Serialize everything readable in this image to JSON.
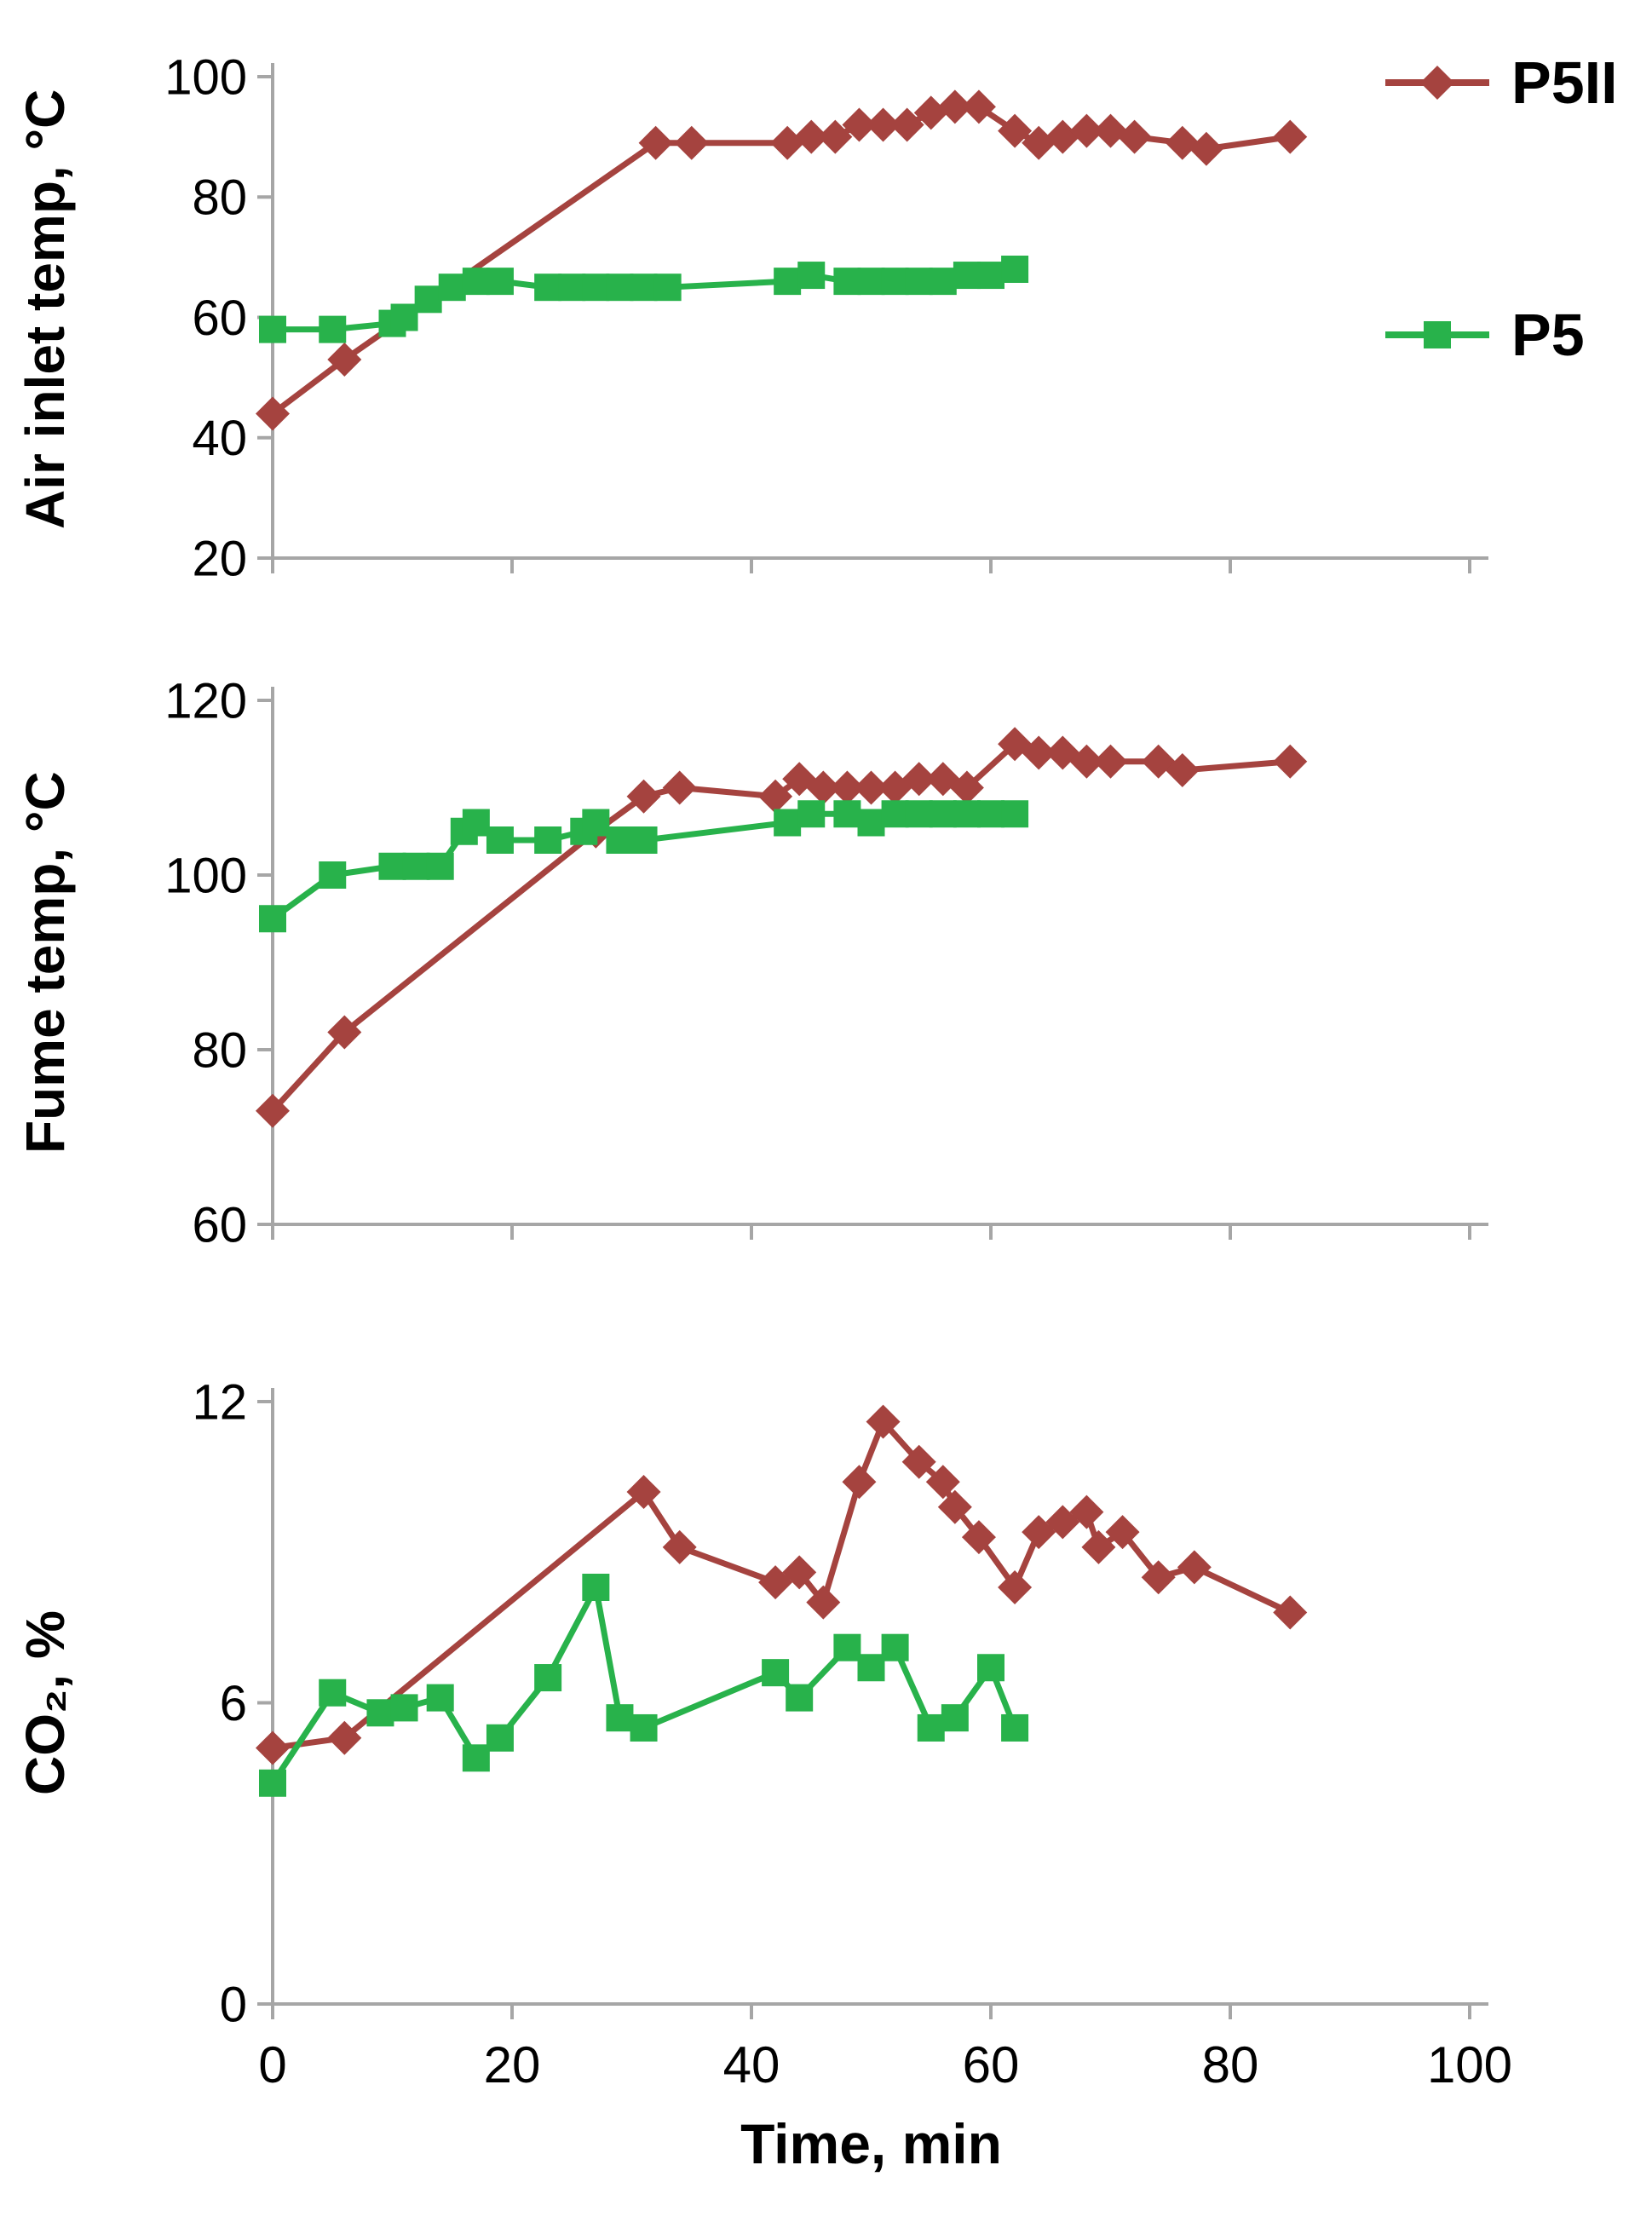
{
  "style": {
    "background": "#FFFFFF",
    "axis_color": "#A6A6A6",
    "text_color": "#000000",
    "p5ii_color": "#A5433F",
    "p5_color": "#28B24B"
  },
  "legend": {
    "items": [
      {
        "label": "P5II",
        "color": "#A5433F",
        "marker": "diamond"
      },
      {
        "label": "P5",
        "color": "#28B24B",
        "marker": "square"
      }
    ]
  },
  "x_axis": {
    "label": "Time, min",
    "range": [
      0,
      100
    ],
    "ticks": [
      0,
      20,
      40,
      60,
      80,
      100
    ]
  },
  "chart_data": [
    {
      "type": "line",
      "ylabel": "Air inlet temp, °C",
      "ylim": [
        20,
        100
      ],
      "yticks": [
        20,
        40,
        60,
        80,
        100
      ],
      "xlabel": "Time, min",
      "xlim": [
        0,
        100
      ],
      "grid": false,
      "series": [
        {
          "name": "P5II",
          "marker": "diamond",
          "color": "#A5433F",
          "points": [
            [
              0,
              44
            ],
            [
              6,
              53
            ],
            [
              32,
              89
            ],
            [
              35,
              89
            ],
            [
              43,
              89
            ],
            [
              45,
              90
            ],
            [
              47,
              90
            ],
            [
              49,
              92
            ],
            [
              51,
              92
            ],
            [
              53,
              92
            ],
            [
              55,
              94
            ],
            [
              57,
              95
            ],
            [
              59,
              95
            ],
            [
              62,
              91
            ],
            [
              64,
              89
            ],
            [
              66,
              90
            ],
            [
              68,
              91
            ],
            [
              70,
              91
            ],
            [
              72,
              90
            ],
            [
              76,
              89
            ],
            [
              78,
              88
            ],
            [
              85,
              90
            ]
          ]
        },
        {
          "name": "P5",
          "marker": "square",
          "color": "#28B24B",
          "points": [
            [
              0,
              58
            ],
            [
              5,
              58
            ],
            [
              10,
              59
            ],
            [
              11,
              60
            ],
            [
              13,
              63
            ],
            [
              15,
              65
            ],
            [
              17,
              66
            ],
            [
              19,
              66
            ],
            [
              23,
              65
            ],
            [
              25,
              65
            ],
            [
              27,
              65
            ],
            [
              29,
              65
            ],
            [
              31,
              65
            ],
            [
              33,
              65
            ],
            [
              43,
              66
            ],
            [
              45,
              67
            ],
            [
              48,
              66
            ],
            [
              50,
              66
            ],
            [
              52,
              66
            ],
            [
              54,
              66
            ],
            [
              56,
              66
            ],
            [
              58,
              67
            ],
            [
              60,
              67
            ],
            [
              62,
              68
            ]
          ]
        }
      ]
    },
    {
      "type": "line",
      "ylabel": "Fume temp, °C",
      "ylim": [
        60,
        120
      ],
      "yticks": [
        60,
        80,
        100,
        120
      ],
      "xlabel": "Time, min",
      "xlim": [
        0,
        100
      ],
      "grid": false,
      "series": [
        {
          "name": "P5II",
          "marker": "diamond",
          "color": "#A5433F",
          "points": [
            [
              0,
              73
            ],
            [
              6,
              82
            ],
            [
              27,
              105
            ],
            [
              31,
              109
            ],
            [
              34,
              110
            ],
            [
              42,
              109
            ],
            [
              44,
              111
            ],
            [
              46,
              110
            ],
            [
              48,
              110
            ],
            [
              50,
              110
            ],
            [
              52,
              110
            ],
            [
              54,
              111
            ],
            [
              56,
              111
            ],
            [
              58,
              110
            ],
            [
              62,
              115
            ],
            [
              64,
              114
            ],
            [
              66,
              114
            ],
            [
              68,
              113
            ],
            [
              70,
              113
            ],
            [
              74,
              113
            ],
            [
              76,
              112
            ],
            [
              85,
              113
            ]
          ]
        },
        {
          "name": "P5",
          "marker": "square",
          "color": "#28B24B",
          "points": [
            [
              0,
              95
            ],
            [
              5,
              100
            ],
            [
              10,
              101
            ],
            [
              12,
              101
            ],
            [
              14,
              101
            ],
            [
              16,
              105
            ],
            [
              17,
              106
            ],
            [
              19,
              104
            ],
            [
              23,
              104
            ],
            [
              26,
              105
            ],
            [
              27,
              106
            ],
            [
              29,
              104
            ],
            [
              31,
              104
            ],
            [
              43,
              106
            ],
            [
              45,
              107
            ],
            [
              48,
              107
            ],
            [
              50,
              106
            ],
            [
              52,
              107
            ],
            [
              54,
              107
            ],
            [
              56,
              107
            ],
            [
              58,
              107
            ],
            [
              60,
              107
            ],
            [
              62,
              107
            ]
          ]
        }
      ]
    },
    {
      "type": "line",
      "ylabel": "CO₂, %",
      "ylim": [
        0,
        12
      ],
      "yticks": [
        0,
        6,
        12
      ],
      "xlabel": "Time, min",
      "xlim": [
        0,
        100
      ],
      "grid": false,
      "series": [
        {
          "name": "P5II",
          "marker": "diamond",
          "color": "#A5433F",
          "points": [
            [
              0,
              5.1
            ],
            [
              6,
              5.3
            ],
            [
              31,
              10.2
            ],
            [
              34,
              9.1
            ],
            [
              42,
              8.4
            ],
            [
              44,
              8.6
            ],
            [
              46,
              8.0
            ],
            [
              49,
              10.4
            ],
            [
              51,
              11.6
            ],
            [
              54,
              10.8
            ],
            [
              56,
              10.4
            ],
            [
              57,
              9.9
            ],
            [
              59,
              9.3
            ],
            [
              62,
              8.3
            ],
            [
              64,
              9.4
            ],
            [
              66,
              9.6
            ],
            [
              68,
              9.8
            ],
            [
              69,
              9.1
            ],
            [
              71,
              9.4
            ],
            [
              74,
              8.5
            ],
            [
              77,
              8.7
            ],
            [
              85,
              7.8
            ]
          ]
        },
        {
          "name": "P5",
          "marker": "square",
          "color": "#28B24B",
          "points": [
            [
              0,
              4.4
            ],
            [
              5,
              6.2
            ],
            [
              9,
              5.8
            ],
            [
              11,
              5.9
            ],
            [
              14,
              6.1
            ],
            [
              17,
              4.9
            ],
            [
              19,
              5.3
            ],
            [
              23,
              6.5
            ],
            [
              27,
              8.3
            ],
            [
              29,
              5.7
            ],
            [
              31,
              5.5
            ],
            [
              42,
              6.6
            ],
            [
              44,
              6.1
            ],
            [
              48,
              7.1
            ],
            [
              50,
              6.7
            ],
            [
              52,
              7.1
            ],
            [
              55,
              5.5
            ],
            [
              57,
              5.7
            ],
            [
              60,
              6.7
            ],
            [
              62,
              5.5
            ]
          ]
        }
      ]
    }
  ]
}
